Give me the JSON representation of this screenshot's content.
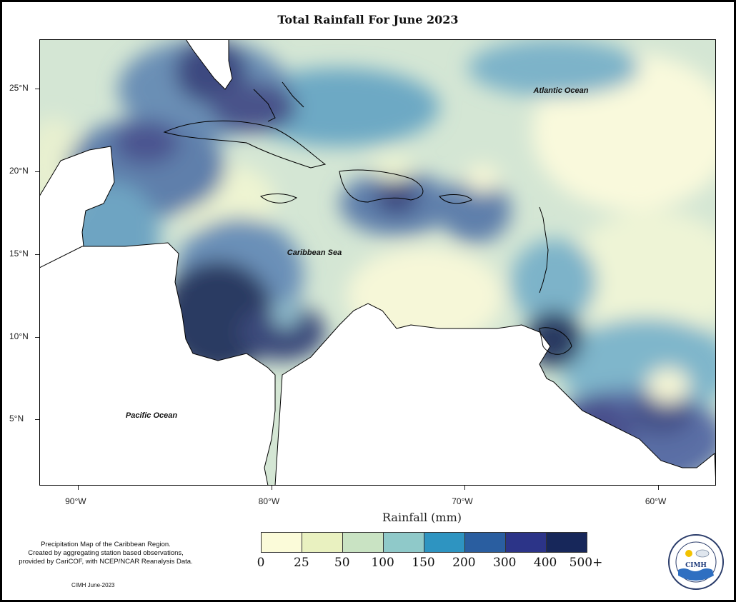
{
  "title": "Total Rainfall For June 2023",
  "map": {
    "lon_range": [
      -92.0,
      -57.0
    ],
    "lat_range": [
      1.0,
      28.0
    ],
    "x_ticks": [
      "90°W",
      "80°W",
      "70°W",
      "60°W"
    ],
    "x_tick_values": [
      -90,
      -80,
      -70,
      -60
    ],
    "y_ticks": [
      "25°N",
      "20°N",
      "15°N",
      "10°N",
      "5°N"
    ],
    "y_tick_values": [
      25,
      20,
      15,
      10,
      5
    ],
    "x_axis_title": "Rainfall (mm)",
    "labels": {
      "atlantic": "Atlantic Ocean",
      "caribbean": "Caribbean Sea",
      "pacific": "Pacific Ocean"
    }
  },
  "legend": {
    "values": [
      "0",
      "25",
      "50",
      "100",
      "150",
      "200",
      "300",
      "400",
      "500+"
    ],
    "colors": [
      "#fbfbd9",
      "#e9f1c0",
      "#c9e3c3",
      "#8fc9c9",
      "#2e94c1",
      "#2a5ea0",
      "#2c3488",
      "#17275a"
    ]
  },
  "notes": {
    "line1": "Precipitation Map of the Caribbean Region.",
    "line2": "Created by aggregating station based observations,",
    "line3": "provided by CariCOF, with NCEP/NCAR Reanalysis Data."
  },
  "credit": "CIMH June-2023",
  "logo": {
    "text": "CIMH",
    "ring_text": "Caribbean Institute for Meteorology and Hydrology"
  }
}
